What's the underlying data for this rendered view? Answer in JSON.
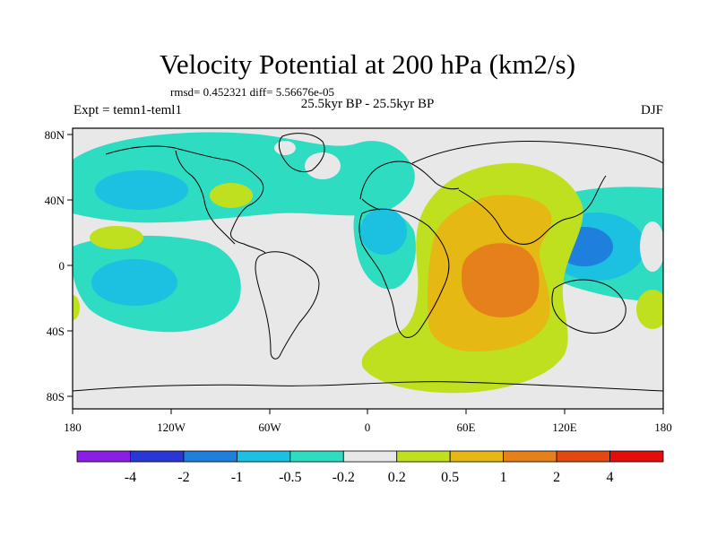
{
  "title": "Velocity Potential at 200 hPa (km2/s)",
  "stats_line": "rmsd= 0.452321 diff= 5.56676e-05",
  "left_label": "Expt = temn1-teml1",
  "center_label": "25.5kyr BP - 25.5kyr BP",
  "right_label": "DJF",
  "map": {
    "lon_ticks": [
      "180",
      "120W",
      "60W",
      "0",
      "60E",
      "120E",
      "180"
    ],
    "lat_ticks": [
      "80N",
      "40N",
      "0",
      "40S",
      "80S"
    ]
  },
  "colorbar": {
    "colors": [
      "#8a1ee6",
      "#2a37d8",
      "#1f7fdc",
      "#1cc0e0",
      "#2edcc2",
      "#e8e8e8",
      "#bfe01e",
      "#e6b814",
      "#e6801a",
      "#e4480f",
      "#e40d0d"
    ],
    "labels": [
      "-4",
      "-2",
      "-1",
      "-0.5",
      "-0.2",
      "0.2",
      "0.5",
      "1",
      "2",
      "4"
    ]
  },
  "colors": {
    "background_field": "#e8e8e8",
    "neg_weak": "#2edcc2",
    "neg_moderate": "#1cc0e0",
    "neg_strong": "#1f7fdc",
    "pos_weak": "#bfe01e",
    "pos_moderate": "#e6b814",
    "pos_strong": "#e6801a",
    "coastline": "#000000"
  }
}
